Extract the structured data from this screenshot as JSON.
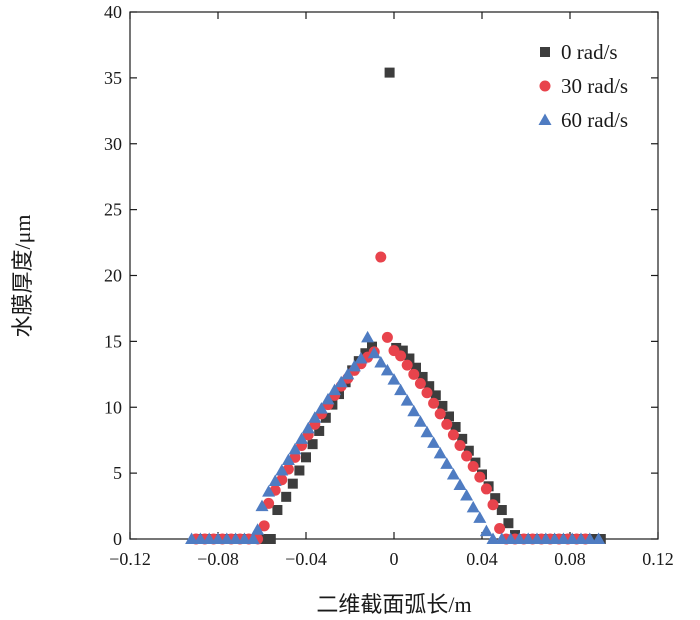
{
  "chart_data": {
    "type": "scatter",
    "title": "",
    "xlabel": "二维截面弧长/m",
    "ylabel": "水膜厚度/μm",
    "xlim": [
      -0.12,
      0.12
    ],
    "ylim": [
      0,
      40
    ],
    "xticks": [
      -0.12,
      -0.08,
      -0.04,
      0,
      0.04,
      0.08,
      0.12
    ],
    "xtick_labels": [
      "−0.12",
      "−0.08",
      "−0.04",
      "0",
      "0.04",
      "0.08",
      "0.12"
    ],
    "yticks": [
      0,
      5,
      10,
      15,
      20,
      25,
      30,
      35,
      40
    ],
    "ytick_labels": [
      "0",
      "5",
      "10",
      "15",
      "20",
      "25",
      "30",
      "35",
      "40"
    ],
    "grid": false,
    "legend_position": "top-right",
    "series": [
      {
        "name": "0 rad/s",
        "marker": "square",
        "color": "#3d3d3d",
        "points": [
          [
            -0.088,
            0
          ],
          [
            -0.084,
            0
          ],
          [
            -0.08,
            0
          ],
          [
            -0.076,
            0
          ],
          [
            -0.072,
            0
          ],
          [
            -0.068,
            0
          ],
          [
            -0.064,
            0
          ],
          [
            -0.06,
            0
          ],
          [
            -0.056,
            0
          ],
          [
            -0.053,
            2.2
          ],
          [
            -0.049,
            3.2
          ],
          [
            -0.046,
            4.2
          ],
          [
            -0.043,
            5.2
          ],
          [
            -0.04,
            6.2
          ],
          [
            -0.037,
            7.2
          ],
          [
            -0.034,
            8.2
          ],
          [
            -0.031,
            9.2
          ],
          [
            -0.028,
            10.2
          ],
          [
            -0.025,
            11.0
          ],
          [
            -0.022,
            11.9
          ],
          [
            -0.019,
            12.8
          ],
          [
            -0.016,
            13.5
          ],
          [
            -0.013,
            14.1
          ],
          [
            -0.01,
            14.6
          ],
          [
            -0.002,
            35.4
          ],
          [
            0.001,
            14.5
          ],
          [
            0.004,
            14.3
          ],
          [
            0.007,
            13.7
          ],
          [
            0.01,
            13.0
          ],
          [
            0.013,
            12.3
          ],
          [
            0.016,
            11.6
          ],
          [
            0.019,
            10.9
          ],
          [
            0.022,
            10.1
          ],
          [
            0.025,
            9.3
          ],
          [
            0.028,
            8.5
          ],
          [
            0.031,
            7.6
          ],
          [
            0.034,
            6.7
          ],
          [
            0.037,
            5.8
          ],
          [
            0.04,
            4.9
          ],
          [
            0.043,
            4.0
          ],
          [
            0.046,
            3.1
          ],
          [
            0.049,
            2.2
          ],
          [
            0.052,
            1.2
          ],
          [
            0.055,
            0.3
          ],
          [
            0.058,
            0
          ],
          [
            0.062,
            0
          ],
          [
            0.066,
            0
          ],
          [
            0.07,
            0
          ],
          [
            0.074,
            0
          ],
          [
            0.078,
            0
          ],
          [
            0.082,
            0
          ],
          [
            0.086,
            0
          ],
          [
            0.09,
            0
          ],
          [
            0.094,
            0
          ]
        ]
      },
      {
        "name": "30 rad/s",
        "marker": "circle",
        "color": "#e8434c",
        "points": [
          [
            -0.09,
            0
          ],
          [
            -0.086,
            0
          ],
          [
            -0.082,
            0
          ],
          [
            -0.078,
            0
          ],
          [
            -0.074,
            0
          ],
          [
            -0.07,
            0
          ],
          [
            -0.066,
            0
          ],
          [
            -0.062,
            0
          ],
          [
            -0.059,
            1.0
          ],
          [
            -0.057,
            2.7
          ],
          [
            -0.054,
            3.7
          ],
          [
            -0.051,
            4.5
          ],
          [
            -0.048,
            5.3
          ],
          [
            -0.045,
            6.2
          ],
          [
            -0.042,
            7.1
          ],
          [
            -0.039,
            7.9
          ],
          [
            -0.036,
            8.7
          ],
          [
            -0.033,
            9.5
          ],
          [
            -0.03,
            10.2
          ],
          [
            -0.027,
            10.9
          ],
          [
            -0.024,
            11.6
          ],
          [
            -0.021,
            12.2
          ],
          [
            -0.018,
            12.8
          ],
          [
            -0.015,
            13.3
          ],
          [
            -0.012,
            13.8
          ],
          [
            -0.009,
            14.2
          ],
          [
            -0.006,
            21.4
          ],
          [
            -0.003,
            15.3
          ],
          [
            0.0,
            14.3
          ],
          [
            0.003,
            13.9
          ],
          [
            0.006,
            13.2
          ],
          [
            0.009,
            12.5
          ],
          [
            0.012,
            11.8
          ],
          [
            0.015,
            11.1
          ],
          [
            0.018,
            10.3
          ],
          [
            0.021,
            9.5
          ],
          [
            0.024,
            8.7
          ],
          [
            0.027,
            7.9
          ],
          [
            0.03,
            7.1
          ],
          [
            0.033,
            6.3
          ],
          [
            0.036,
            5.5
          ],
          [
            0.039,
            4.7
          ],
          [
            0.042,
            3.8
          ],
          [
            0.045,
            2.6
          ],
          [
            0.048,
            0.8
          ],
          [
            0.051,
            0
          ],
          [
            0.055,
            0
          ],
          [
            0.059,
            0
          ],
          [
            0.063,
            0
          ],
          [
            0.067,
            0
          ],
          [
            0.071,
            0
          ],
          [
            0.075,
            0
          ],
          [
            0.079,
            0
          ],
          [
            0.083,
            0
          ],
          [
            0.087,
            0
          ]
        ]
      },
      {
        "name": "60 rad/s",
        "marker": "triangle",
        "color": "#4f7cc2",
        "points": [
          [
            -0.092,
            0
          ],
          [
            -0.088,
            0
          ],
          [
            -0.084,
            0
          ],
          [
            -0.08,
            0
          ],
          [
            -0.076,
            0
          ],
          [
            -0.072,
            0
          ],
          [
            -0.068,
            0
          ],
          [
            -0.064,
            0
          ],
          [
            -0.062,
            0.7
          ],
          [
            -0.06,
            2.5
          ],
          [
            -0.057,
            3.6
          ],
          [
            -0.054,
            4.4
          ],
          [
            -0.051,
            5.2
          ],
          [
            -0.048,
            6.0
          ],
          [
            -0.045,
            6.8
          ],
          [
            -0.042,
            7.6
          ],
          [
            -0.039,
            8.4
          ],
          [
            -0.036,
            9.2
          ],
          [
            -0.033,
            9.9
          ],
          [
            -0.03,
            10.6
          ],
          [
            -0.027,
            11.3
          ],
          [
            -0.024,
            11.9
          ],
          [
            -0.021,
            12.5
          ],
          [
            -0.018,
            13.1
          ],
          [
            -0.015,
            13.7
          ],
          [
            -0.012,
            15.3
          ],
          [
            -0.009,
            14.1
          ],
          [
            -0.006,
            13.4
          ],
          [
            -0.003,
            12.8
          ],
          [
            0.0,
            12.1
          ],
          [
            0.003,
            11.3
          ],
          [
            0.006,
            10.5
          ],
          [
            0.009,
            9.7
          ],
          [
            0.012,
            8.9
          ],
          [
            0.015,
            8.1
          ],
          [
            0.018,
            7.3
          ],
          [
            0.021,
            6.5
          ],
          [
            0.024,
            5.7
          ],
          [
            0.027,
            4.9
          ],
          [
            0.03,
            4.1
          ],
          [
            0.033,
            3.3
          ],
          [
            0.036,
            2.4
          ],
          [
            0.039,
            1.6
          ],
          [
            0.042,
            0.6
          ],
          [
            0.045,
            0
          ],
          [
            0.049,
            0
          ],
          [
            0.053,
            0
          ],
          [
            0.057,
            0
          ],
          [
            0.061,
            0
          ],
          [
            0.065,
            0
          ],
          [
            0.069,
            0
          ],
          [
            0.073,
            0
          ],
          [
            0.077,
            0
          ],
          [
            0.081,
            0
          ],
          [
            0.085,
            0
          ],
          [
            0.089,
            0
          ],
          [
            0.093,
            0
          ]
        ]
      }
    ]
  }
}
